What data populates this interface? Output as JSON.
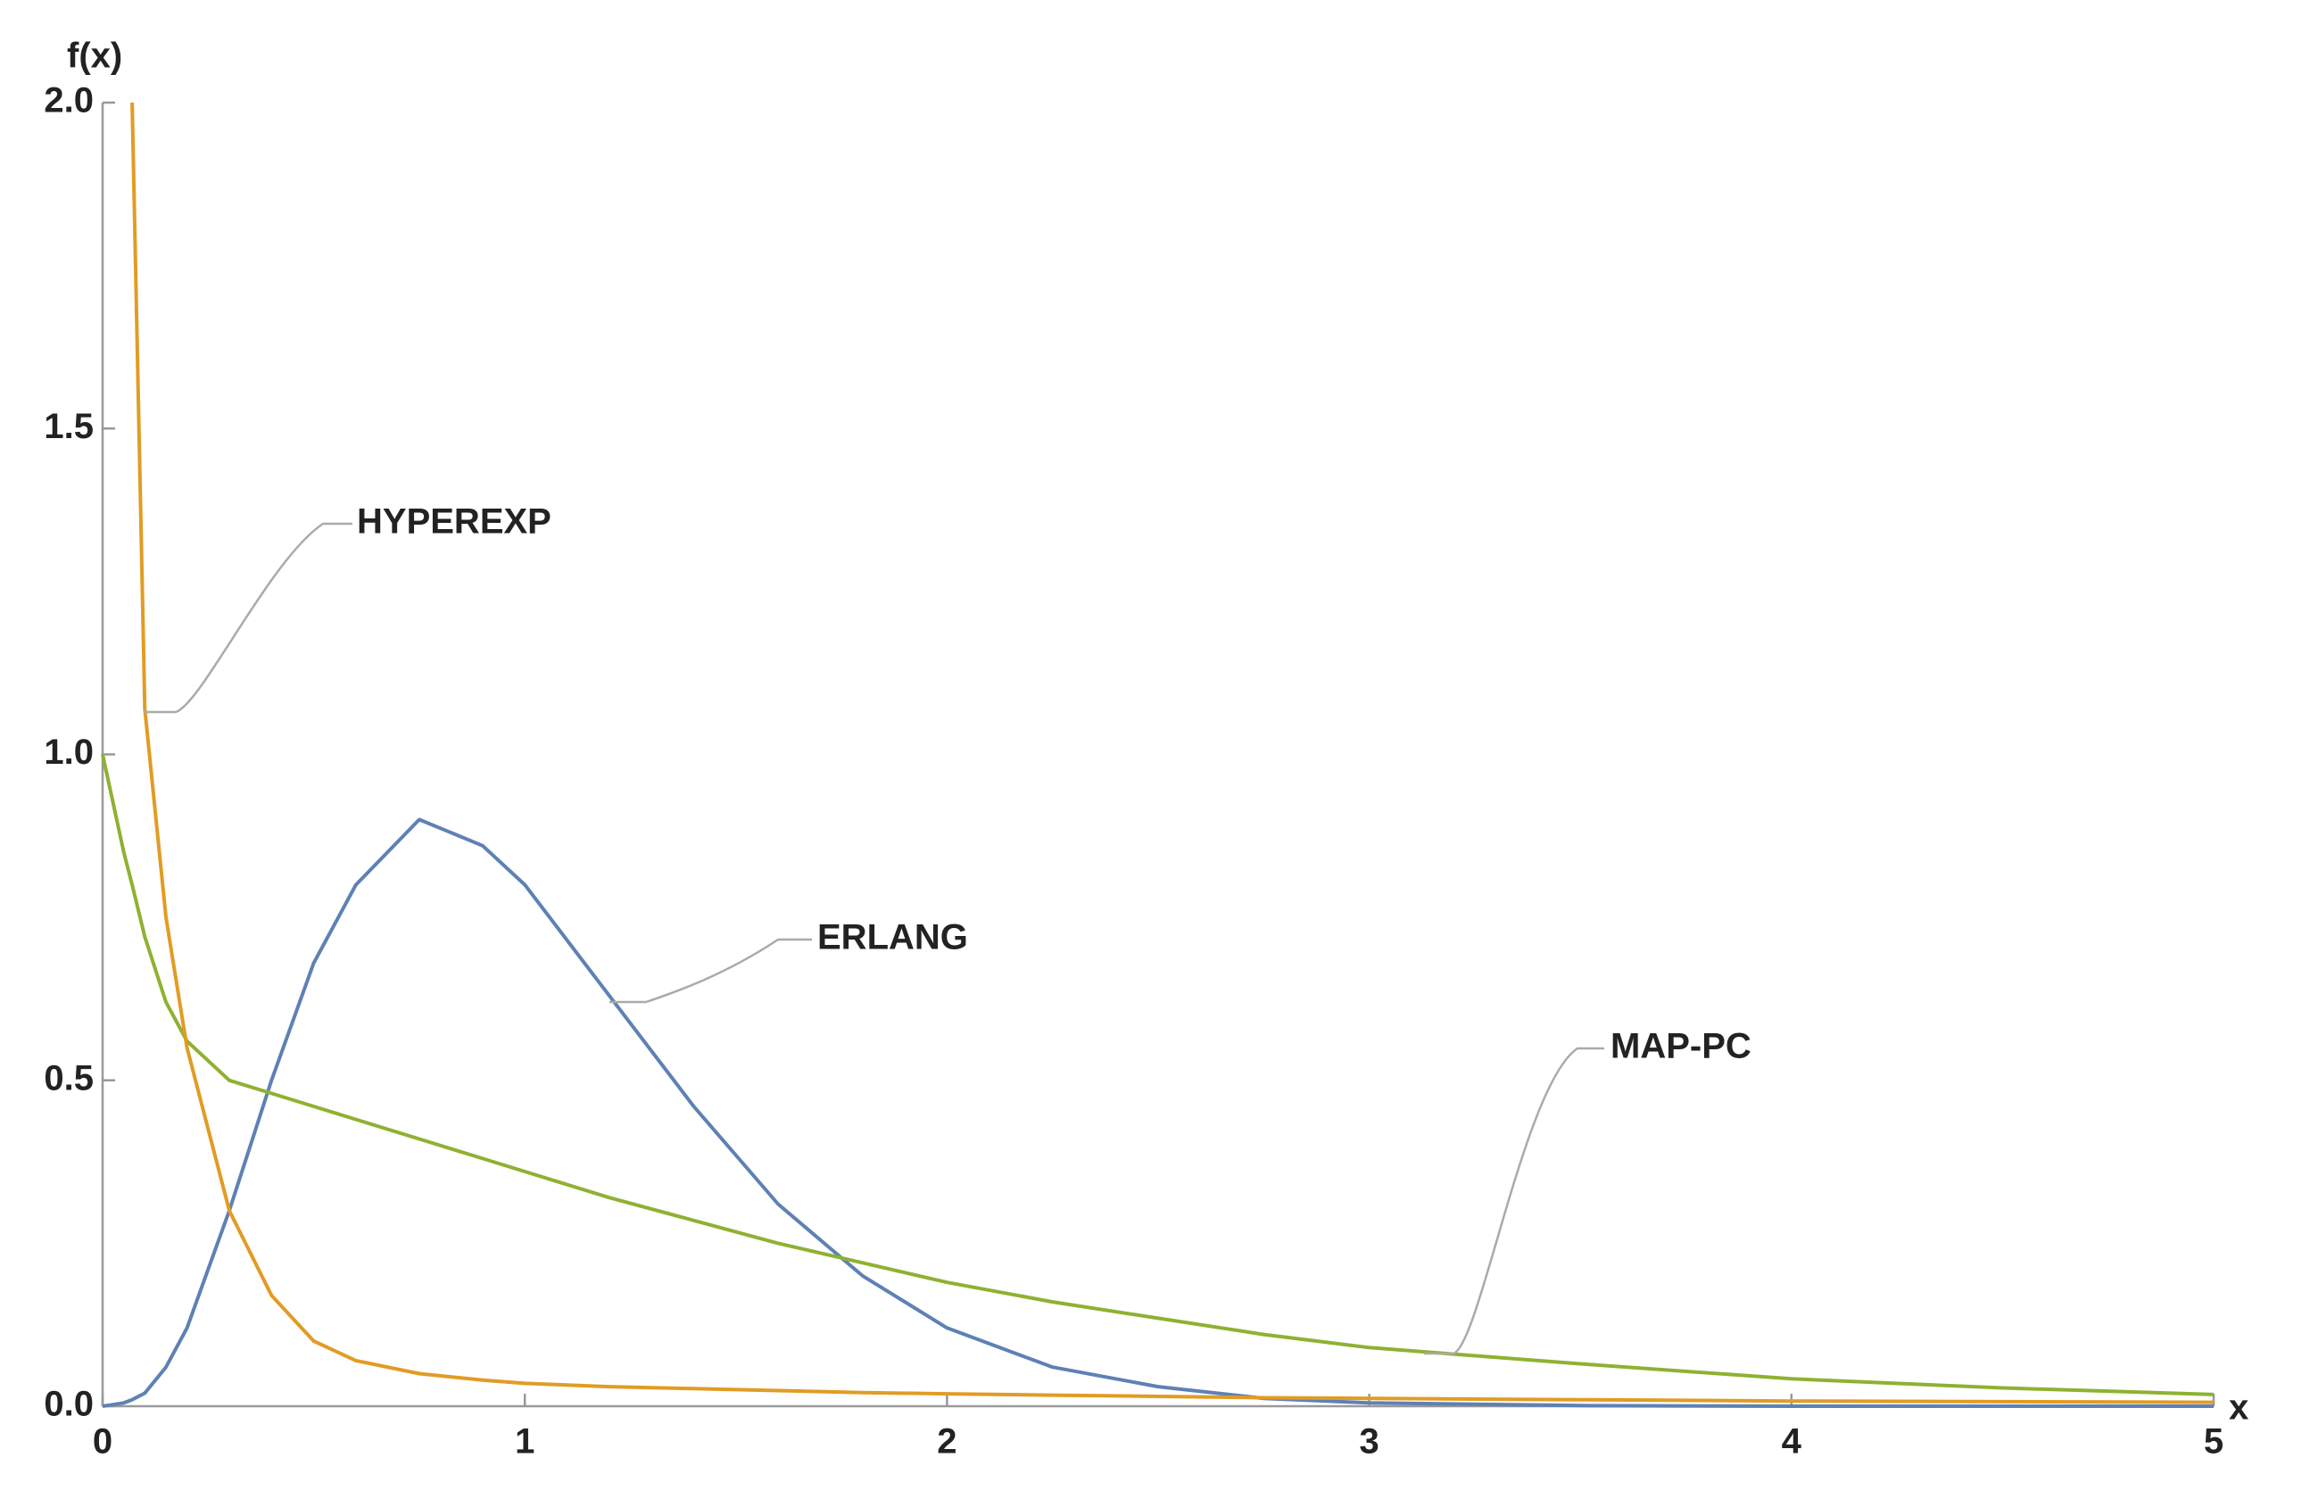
{
  "chart_data": {
    "type": "line",
    "xlabel": "x",
    "ylabel": "f(x)",
    "x": [
      0,
      0.05,
      0.07,
      0.1,
      0.15,
      0.2,
      0.3,
      0.4,
      0.5,
      0.6,
      0.75,
      0.9,
      1.0,
      1.2,
      1.4,
      1.6,
      1.8,
      2.0,
      2.25,
      2.5,
      2.75,
      3.0,
      3.5,
      4.0,
      4.5,
      5.0
    ],
    "series": [
      {
        "name": "ERLANG",
        "color": "#5e81b5",
        "values": [
          0,
          0.005,
          0.01,
          0.02,
          0.06,
          0.12,
          0.3,
          0.5,
          0.68,
          0.8,
          0.9,
          0.86,
          0.8,
          0.63,
          0.46,
          0.31,
          0.2,
          0.12,
          0.06,
          0.03,
          0.012,
          0.005,
          0.001,
          0,
          0,
          0
        ]
      },
      {
        "name": "MAP-PC",
        "color": "#8fb131",
        "values": [
          1.0,
          0.85,
          0.8,
          0.72,
          0.62,
          0.56,
          0.5,
          0.48,
          0.46,
          0.44,
          0.41,
          0.38,
          0.36,
          0.32,
          0.285,
          0.25,
          0.22,
          0.19,
          0.16,
          0.135,
          0.11,
          0.09,
          0.065,
          0.042,
          0.028,
          0.018
        ]
      },
      {
        "name": "HYPEREXP",
        "color": "#e19c24",
        "values": [
          null,
          null,
          2.0,
          1.07,
          0.75,
          0.55,
          0.3,
          0.17,
          0.1,
          0.07,
          0.05,
          0.04,
          0.035,
          0.03,
          0.027,
          0.024,
          0.021,
          0.019,
          0.017,
          0.015,
          0.013,
          0.012,
          0.01,
          0.008,
          0.007,
          0.006
        ]
      }
    ],
    "xlim": [
      0,
      5
    ],
    "ylim": [
      0,
      2
    ],
    "xticks": [
      0,
      1,
      2,
      3,
      4,
      5
    ],
    "yticks": [
      {
        "value": 0,
        "label": "0.0"
      },
      0.5,
      {
        "value": 1,
        "label": "1.0"
      },
      1.5,
      {
        "value": 2,
        "label": "2.0"
      }
    ]
  }
}
